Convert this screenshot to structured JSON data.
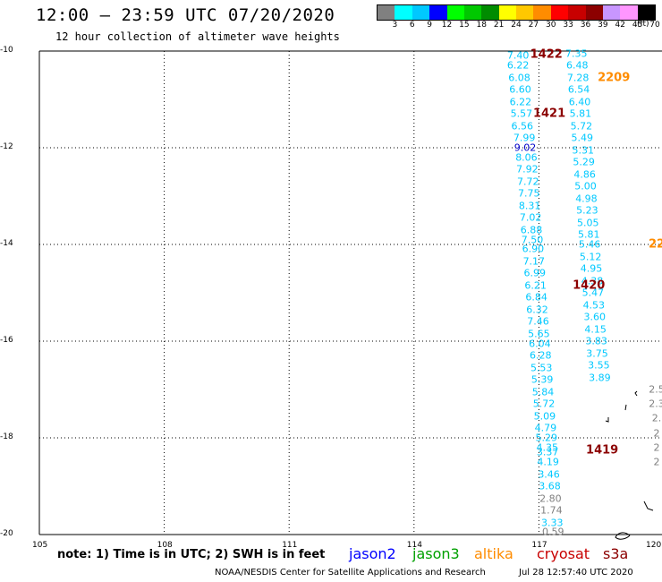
{
  "header": {
    "title": "12:00 — 23:59 UTC 07/20/2020",
    "subtitle": "12 hour collection of altimeter wave heights"
  },
  "legend": {
    "unit": "(ft)",
    "bins": [
      {
        "label": "3",
        "color": "#808080"
      },
      {
        "label": "6",
        "color": "#00ffff"
      },
      {
        "label": "9",
        "color": "#00c8ff"
      },
      {
        "label": "12",
        "color": "#0000ff"
      },
      {
        "label": "15",
        "color": "#00ff00"
      },
      {
        "label": "18",
        "color": "#00c800"
      },
      {
        "label": "21",
        "color": "#008c00"
      },
      {
        "label": "24",
        "color": "#ffff00"
      },
      {
        "label": "27",
        "color": "#ffc800"
      },
      {
        "label": "30",
        "color": "#ff8c00"
      },
      {
        "label": "33",
        "color": "#ff0000"
      },
      {
        "label": "36",
        "color": "#c80000"
      },
      {
        "label": "39",
        "color": "#8c0000"
      },
      {
        "label": "42",
        "color": "#c896ff"
      },
      {
        "label": "45",
        "color": "#ff96ff"
      },
      {
        "label": "70",
        "color": "#000000"
      }
    ]
  },
  "map": {
    "lon_range": [
      105,
      120
    ],
    "lat_range": [
      -20,
      -10
    ],
    "lon_ticks": [
      "105",
      "108",
      "111",
      "114",
      "117",
      "120"
    ],
    "lat_ticks": [
      "-10",
      "-12",
      "-14",
      "-16",
      "-18",
      "-20"
    ],
    "grid": "dotted"
  },
  "colors": {
    "cyan": "#00c8ff",
    "blue": "#0000c8",
    "gray": "#808080",
    "time_label": "#8c0000",
    "altika_time": "#ff8c00",
    "jason2": "#0000ff",
    "jason3": "#00a000",
    "altika": "#ff8c00",
    "cryosat": "#c80000",
    "s3a": "#8c0000"
  },
  "tracks": [
    {
      "name": "pass-1",
      "points": [
        {
          "lon": 116.5,
          "lat": -10.1,
          "v": "7.40",
          "c": "cyan"
        },
        {
          "lon": 116.5,
          "lat": -10.3,
          "v": "6.22",
          "c": "cyan"
        },
        {
          "lon": 116.53,
          "lat": -10.55,
          "v": "6.08",
          "c": "cyan"
        },
        {
          "lon": 116.55,
          "lat": -10.8,
          "v": "6.60",
          "c": "cyan"
        },
        {
          "lon": 116.56,
          "lat": -11.05,
          "v": "6.22",
          "c": "cyan"
        },
        {
          "lon": 116.58,
          "lat": -11.3,
          "v": "5.57",
          "c": "cyan"
        },
        {
          "lon": 116.6,
          "lat": -11.55,
          "v": "6.56",
          "c": "cyan"
        },
        {
          "lon": 116.65,
          "lat": -11.8,
          "v": "7.99",
          "c": "cyan"
        },
        {
          "lon": 116.67,
          "lat": -12.0,
          "v": "9.02",
          "c": "blue"
        },
        {
          "lon": 116.7,
          "lat": -12.2,
          "v": "8.06",
          "c": "cyan"
        },
        {
          "lon": 116.72,
          "lat": -12.45,
          "v": "7.92",
          "c": "cyan"
        },
        {
          "lon": 116.74,
          "lat": -12.7,
          "v": "7.72",
          "c": "cyan"
        },
        {
          "lon": 116.76,
          "lat": -12.95,
          "v": "7.75",
          "c": "cyan"
        },
        {
          "lon": 116.78,
          "lat": -13.2,
          "v": "8.31",
          "c": "cyan"
        },
        {
          "lon": 116.8,
          "lat": -13.45,
          "v": "7.02",
          "c": "cyan"
        },
        {
          "lon": 116.82,
          "lat": -13.7,
          "v": "6.88",
          "c": "cyan"
        },
        {
          "lon": 116.84,
          "lat": -13.9,
          "v": "7.50",
          "c": "cyan"
        },
        {
          "lon": 116.86,
          "lat": -14.1,
          "v": "6.90",
          "c": "cyan"
        },
        {
          "lon": 116.88,
          "lat": -14.35,
          "v": "7.17",
          "c": "cyan"
        },
        {
          "lon": 116.9,
          "lat": -14.6,
          "v": "6.99",
          "c": "cyan"
        },
        {
          "lon": 116.92,
          "lat": -14.85,
          "v": "6.21",
          "c": "cyan"
        },
        {
          "lon": 116.94,
          "lat": -15.1,
          "v": "6.84",
          "c": "cyan"
        },
        {
          "lon": 116.96,
          "lat": -15.35,
          "v": "6.32",
          "c": "cyan"
        },
        {
          "lon": 116.98,
          "lat": -15.6,
          "v": "7.46",
          "c": "cyan"
        },
        {
          "lon": 117.0,
          "lat": -15.85,
          "v": "5.65",
          "c": "cyan"
        },
        {
          "lon": 117.02,
          "lat": -16.05,
          "v": "6.04",
          "c": "cyan"
        },
        {
          "lon": 117.04,
          "lat": -16.3,
          "v": "6.28",
          "c": "cyan"
        },
        {
          "lon": 117.06,
          "lat": -16.55,
          "v": "5.53",
          "c": "cyan"
        },
        {
          "lon": 117.08,
          "lat": -16.8,
          "v": "5.39",
          "c": "cyan"
        },
        {
          "lon": 117.1,
          "lat": -17.05,
          "v": "5.84",
          "c": "cyan"
        },
        {
          "lon": 117.12,
          "lat": -17.3,
          "v": "5.72",
          "c": "cyan"
        },
        {
          "lon": 117.14,
          "lat": -17.55,
          "v": "5.09",
          "c": "cyan"
        },
        {
          "lon": 117.16,
          "lat": -17.8,
          "v": "4.79",
          "c": "cyan"
        },
        {
          "lon": 117.18,
          "lat": -18.0,
          "v": "5.29",
          "c": "cyan"
        },
        {
          "lon": 117.2,
          "lat": -18.2,
          "v": "4.35",
          "c": "cyan"
        },
        {
          "lon": 117.21,
          "lat": -18.3,
          "v": "3.37",
          "c": "cyan"
        },
        {
          "lon": 117.22,
          "lat": -18.5,
          "v": "4.19",
          "c": "cyan"
        },
        {
          "lon": 117.24,
          "lat": -18.75,
          "v": "3.46",
          "c": "cyan"
        },
        {
          "lon": 117.26,
          "lat": -19.0,
          "v": "3.68",
          "c": "cyan"
        },
        {
          "lon": 117.28,
          "lat": -19.25,
          "v": "2.80",
          "c": "gray"
        },
        {
          "lon": 117.3,
          "lat": -19.5,
          "v": "1.74",
          "c": "gray"
        },
        {
          "lon": 117.32,
          "lat": -19.75,
          "v": "3.33",
          "c": "cyan"
        },
        {
          "lon": 117.34,
          "lat": -19.95,
          "v": "0.59",
          "c": "gray"
        }
      ]
    },
    {
      "name": "pass-2",
      "points": [
        {
          "lon": 117.9,
          "lat": -10.05,
          "v": "7.35",
          "c": "cyan"
        },
        {
          "lon": 117.92,
          "lat": -10.3,
          "v": "6.48",
          "c": "cyan"
        },
        {
          "lon": 117.94,
          "lat": -10.55,
          "v": "7.28",
          "c": "cyan"
        },
        {
          "lon": 117.96,
          "lat": -10.8,
          "v": "6.54",
          "c": "cyan"
        },
        {
          "lon": 117.98,
          "lat": -11.05,
          "v": "6.40",
          "c": "cyan"
        },
        {
          "lon": 118.0,
          "lat": -11.3,
          "v": "5.81",
          "c": "cyan"
        },
        {
          "lon": 118.02,
          "lat": -11.55,
          "v": "5.72",
          "c": "cyan"
        },
        {
          "lon": 118.04,
          "lat": -11.8,
          "v": "5.49",
          "c": "cyan"
        },
        {
          "lon": 118.06,
          "lat": -12.05,
          "v": "5.31",
          "c": "cyan"
        },
        {
          "lon": 118.08,
          "lat": -12.3,
          "v": "5.29",
          "c": "cyan"
        },
        {
          "lon": 118.1,
          "lat": -12.55,
          "v": "4.86",
          "c": "cyan"
        },
        {
          "lon": 118.12,
          "lat": -12.8,
          "v": "5.00",
          "c": "cyan"
        },
        {
          "lon": 118.14,
          "lat": -13.05,
          "v": "4.98",
          "c": "cyan"
        },
        {
          "lon": 118.16,
          "lat": -13.3,
          "v": "5.23",
          "c": "cyan"
        },
        {
          "lon": 118.18,
          "lat": -13.55,
          "v": "5.05",
          "c": "cyan"
        },
        {
          "lon": 118.2,
          "lat": -13.8,
          "v": "5.81",
          "c": "cyan"
        },
        {
          "lon": 118.22,
          "lat": -14.0,
          "v": "5.46",
          "c": "cyan"
        },
        {
          "lon": 118.24,
          "lat": -14.25,
          "v": "5.12",
          "c": "cyan"
        },
        {
          "lon": 118.26,
          "lat": -14.5,
          "v": "4.95",
          "c": "cyan"
        },
        {
          "lon": 118.28,
          "lat": -14.75,
          "v": "4.38",
          "c": "cyan"
        },
        {
          "lon": 118.3,
          "lat": -15.0,
          "v": "5.47",
          "c": "cyan"
        },
        {
          "lon": 118.32,
          "lat": -15.25,
          "v": "4.53",
          "c": "cyan"
        },
        {
          "lon": 118.34,
          "lat": -15.5,
          "v": "3.60",
          "c": "cyan"
        },
        {
          "lon": 118.36,
          "lat": -15.75,
          "v": "4.15",
          "c": "cyan"
        },
        {
          "lon": 118.38,
          "lat": -16.0,
          "v": "3.83",
          "c": "cyan"
        },
        {
          "lon": 118.4,
          "lat": -16.25,
          "v": "3.75",
          "c": "cyan"
        },
        {
          "lon": 118.44,
          "lat": -16.5,
          "v": "3.55",
          "c": "cyan"
        },
        {
          "lon": 118.46,
          "lat": -16.75,
          "v": "3.89",
          "c": "cyan"
        }
      ]
    }
  ],
  "time_labels": [
    {
      "lon": 117.18,
      "lat": -10.08,
      "text": "1422",
      "c": "time_label"
    },
    {
      "lon": 118.8,
      "lat": -10.55,
      "text": "2209",
      "c": "altika_time"
    },
    {
      "lon": 117.25,
      "lat": -11.3,
      "text": "1421",
      "c": "time_label"
    },
    {
      "lon": 118.2,
      "lat": -14.85,
      "text": "1420",
      "c": "time_label"
    },
    {
      "lon": 118.52,
      "lat": -18.25,
      "text": "1419",
      "c": "time_label"
    },
    {
      "lon": 119.9,
      "lat": -14.0,
      "text": "22",
      "c": "altika_time"
    }
  ],
  "edge_values": [
    {
      "lon": 119.85,
      "lat": -17.0,
      "v": "2.5",
      "c": "gray"
    },
    {
      "lon": 119.85,
      "lat": -17.3,
      "v": "2.3",
      "c": "gray"
    },
    {
      "lon": 119.9,
      "lat": -17.6,
      "v": "2.",
      "c": "gray"
    },
    {
      "lon": 119.9,
      "lat": -17.9,
      "v": "2",
      "c": "gray"
    },
    {
      "lon": 119.9,
      "lat": -18.2,
      "v": "2",
      "c": "gray"
    },
    {
      "lon": 119.92,
      "lat": -18.5,
      "v": "2",
      "c": "gray"
    }
  ],
  "footer": {
    "note": "note: 1) Time is in UTC; 2) SWH is in feet",
    "satellites": [
      {
        "label": "jason2",
        "c": "jason2"
      },
      {
        "label": "jason3",
        "c": "jason3"
      },
      {
        "label": "altika",
        "c": "altika"
      },
      {
        "label": "cryosat",
        "c": "cryosat"
      },
      {
        "label": "s3a",
        "c": "s3a"
      }
    ],
    "credit": "NOAA/NESDIS Center for Satellite Applications and Research",
    "timestamp": "Jul 28 12:57:40 UTC 2020"
  }
}
